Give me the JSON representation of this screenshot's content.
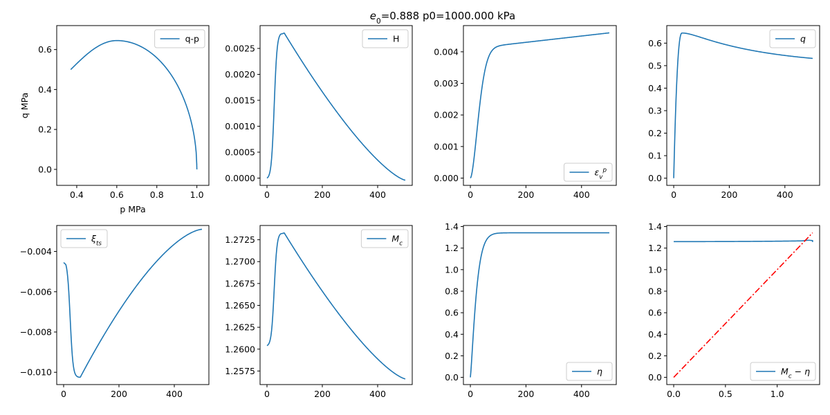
{
  "figure": {
    "title_parts": [
      {
        "t": "e",
        "italic": true
      },
      {
        "t": "0",
        "sub": true
      },
      {
        "t": "=0.888 p0=1000.000 kPa"
      }
    ],
    "line_color": "#1f77b4",
    "ref_line_color": "#ff0000"
  },
  "chart_data": [
    {
      "type": "line",
      "xlim": [
        0.3,
        1.06
      ],
      "ylim": [
        -0.08,
        0.72
      ],
      "xticks": [
        0.4,
        0.6,
        0.8,
        1.0
      ],
      "xtick_labels": [
        "0.4",
        "0.6",
        "0.8",
        "1.0"
      ],
      "yticks": [
        0.0,
        0.2,
        0.4,
        0.6
      ],
      "ytick_labels": [
        "0.0",
        "0.2",
        "0.4",
        "0.6"
      ],
      "xlabel": "p MPa",
      "ylabel": "q MPa",
      "legend": {
        "loc": "upper right",
        "label": [
          {
            "t": "q-p"
          }
        ]
      },
      "grid": false,
      "series": [
        {
          "name": "q-p",
          "curve": "qp"
        }
      ]
    },
    {
      "type": "line",
      "xlim": [
        -25,
        525
      ],
      "ylim": [
        -0.00014,
        0.00294
      ],
      "xticks": [
        0,
        200,
        400
      ],
      "xtick_labels": [
        "0",
        "200",
        "400"
      ],
      "yticks": [
        0,
        0.0005,
        0.001,
        0.0015,
        0.002,
        0.0025
      ],
      "ytick_labels": [
        "0.0000",
        "0.0005",
        "0.0010",
        "0.0015",
        "0.0020",
        "0.0025"
      ],
      "xlabel": "",
      "ylabel": "",
      "legend": {
        "loc": "upper right",
        "label": [
          {
            "t": "H"
          }
        ]
      },
      "grid": false,
      "series": [
        {
          "name": "H",
          "curve": "hump",
          "y0": 0,
          "ypk": 0.0028,
          "yend": -4e-05
        }
      ]
    },
    {
      "type": "line",
      "xlim": [
        -25,
        525
      ],
      "ylim": [
        -0.00023,
        0.00483
      ],
      "xticks": [
        0,
        200,
        400
      ],
      "xtick_labels": [
        "0",
        "200",
        "400"
      ],
      "yticks": [
        0,
        0.001,
        0.002,
        0.003,
        0.004
      ],
      "ytick_labels": [
        "0.000",
        "0.001",
        "0.002",
        "0.003",
        "0.004"
      ],
      "xlabel": "",
      "ylabel": "",
      "legend": {
        "loc": "lower right",
        "label": [
          {
            "t": "ε",
            "italic": true
          },
          {
            "t": "v",
            "italic": true,
            "sub": true
          },
          {
            "t": "p",
            "italic": true,
            "sup": true
          }
        ]
      },
      "grid": false,
      "series": [
        {
          "name": "",
          "curve": "strain",
          "ymax": 0.0046
        }
      ]
    },
    {
      "type": "line",
      "xlim": [
        -25,
        525
      ],
      "ylim": [
        -0.032,
        0.678
      ],
      "xticks": [
        0,
        200,
        400
      ],
      "xtick_labels": [
        "0",
        "200",
        "400"
      ],
      "yticks": [
        0,
        0.1,
        0.2,
        0.3,
        0.4,
        0.5,
        0.6
      ],
      "ytick_labels": [
        "0.0",
        "0.1",
        "0.2",
        "0.3",
        "0.4",
        "0.5",
        "0.6"
      ],
      "xlabel": "",
      "ylabel": "",
      "legend": {
        "loc": "upper right",
        "label": [
          {
            "t": "q",
            "italic": true
          }
        ]
      },
      "grid": false,
      "series": [
        {
          "name": "",
          "curve": "qt"
        }
      ]
    },
    {
      "type": "line",
      "xlim": [
        -25,
        525
      ],
      "ylim": [
        -0.01061,
        -0.00271
      ],
      "xticks": [
        0,
        200,
        400
      ],
      "xtick_labels": [
        "0",
        "200",
        "400"
      ],
      "yticks": [
        -0.004,
        -0.006,
        -0.008,
        -0.01
      ],
      "ytick_labels": [
        "−0.004",
        "−0.006",
        "−0.008",
        "−0.010"
      ],
      "xlabel": "",
      "ylabel": "",
      "legend": {
        "loc": "upper left",
        "label": [
          {
            "t": "ξ",
            "italic": true
          },
          {
            "t": "ts",
            "italic": true,
            "sub": true
          }
        ]
      },
      "grid": false,
      "series": [
        {
          "name": "",
          "curve": "xi"
        }
      ]
    },
    {
      "type": "line",
      "xlim": [
        -25,
        525
      ],
      "ylim": [
        1.25595,
        1.27413
      ],
      "xticks": [
        0,
        200,
        400
      ],
      "xtick_labels": [
        "0",
        "200",
        "400"
      ],
      "yticks": [
        1.2575,
        1.26,
        1.2625,
        1.265,
        1.2675,
        1.27,
        1.2725
      ],
      "ytick_labels": [
        "1.2575",
        "1.2600",
        "1.2625",
        "1.2650",
        "1.2675",
        "1.2700",
        "1.2725"
      ],
      "xlabel": "",
      "ylabel": "",
      "legend": {
        "loc": "upper right",
        "label": [
          {
            "t": "M",
            "italic": true
          },
          {
            "t": "c",
            "italic": true,
            "sub": true
          }
        ]
      },
      "grid": false,
      "series": [
        {
          "name": "",
          "curve": "hump",
          "y0": 1.2604,
          "ypk": 1.2733,
          "yend": 1.2566
        }
      ]
    },
    {
      "type": "line",
      "xlim": [
        -25,
        525
      ],
      "ylim": [
        -0.067,
        1.41
      ],
      "xticks": [
        0,
        200,
        400
      ],
      "xtick_labels": [
        "0",
        "200",
        "400"
      ],
      "yticks": [
        0,
        0.2,
        0.4,
        0.6,
        0.8,
        1.0,
        1.2,
        1.4
      ],
      "ytick_labels": [
        "0.0",
        "0.2",
        "0.4",
        "0.6",
        "0.8",
        "1.0",
        "1.2",
        "1.4"
      ],
      "xlabel": "",
      "ylabel": "",
      "legend": {
        "loc": "lower right",
        "label": [
          {
            "t": "η",
            "italic": true
          }
        ]
      },
      "grid": false,
      "series": [
        {
          "name": "",
          "curve": "eta",
          "ymax": 1.342
        }
      ]
    },
    {
      "type": "line",
      "xlim": [
        -0.067,
        1.41
      ],
      "ylim": [
        -0.067,
        1.41
      ],
      "xticks": [
        0.0,
        0.5,
        1.0
      ],
      "xtick_labels": [
        "0.0",
        "0.5",
        "1.0"
      ],
      "yticks": [
        0,
        0.2,
        0.4,
        0.6,
        0.8,
        1.0,
        1.2,
        1.4
      ],
      "ytick_labels": [
        "0.0",
        "0.2",
        "0.4",
        "0.6",
        "0.8",
        "1.0",
        "1.2",
        "1.4"
      ],
      "xlabel": "",
      "ylabel": "",
      "legend": {
        "loc": "lower right",
        "label": [
          {
            "t": "M",
            "italic": true
          },
          {
            "t": "c",
            "italic": true,
            "sub": true
          },
          {
            "t": " − "
          },
          {
            "t": "η",
            "italic": true
          }
        ]
      },
      "grid": false,
      "series": [
        {
          "name": "",
          "curve": "mceta"
        },
        {
          "name": "",
          "style": "dashdot",
          "color": "#ff0000",
          "x": [
            0,
            1.342
          ],
          "y": [
            0,
            1.342
          ]
        }
      ]
    }
  ]
}
